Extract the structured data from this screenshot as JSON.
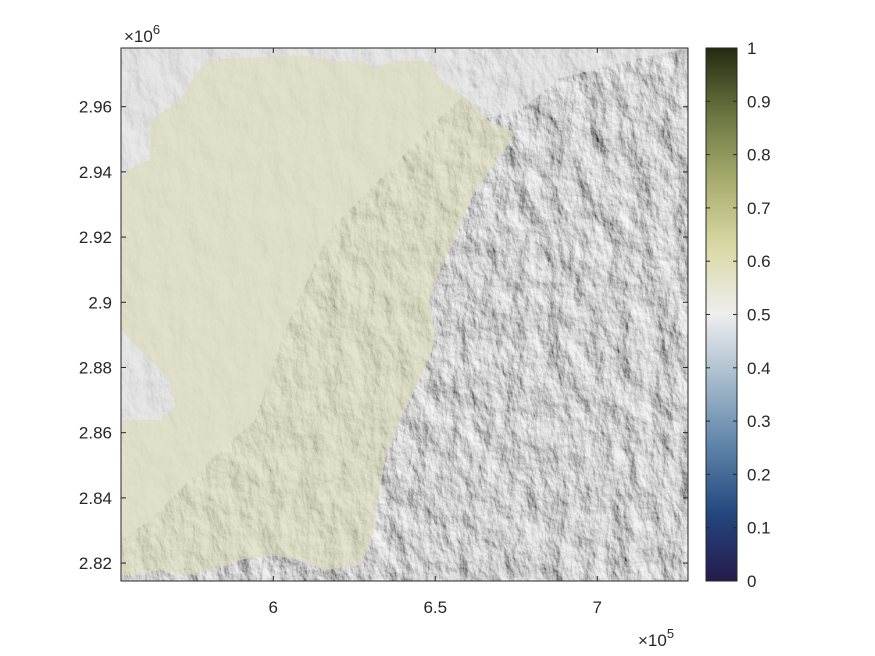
{
  "chart_data": {
    "type": "heatmap",
    "description_kind": "shaded-relief terrain map with translucent overlay",
    "x_axis": {
      "ticks": [
        6,
        6.5,
        7
      ],
      "tick_labels": [
        "6",
        "6.5",
        "7"
      ],
      "multiplier_base": "×10",
      "multiplier_exp": "5",
      "lim": [
        5.53,
        7.28
      ]
    },
    "y_axis": {
      "ticks": [
        2.82,
        2.84,
        2.86,
        2.88,
        2.9,
        2.92,
        2.94,
        2.96
      ],
      "tick_labels": [
        "2.82",
        "2.84",
        "2.86",
        "2.88",
        "2.9",
        "2.92",
        "2.94",
        "2.96"
      ],
      "multiplier_base": "×10",
      "multiplier_exp": "6",
      "lim": [
        2.8145,
        2.978
      ]
    },
    "colorbar": {
      "ticks": [
        0,
        0.1,
        0.2,
        0.3,
        0.4,
        0.5,
        0.6,
        0.7,
        0.8,
        0.9,
        1
      ],
      "tick_labels": [
        "0",
        "0.1",
        "0.2",
        "0.3",
        "0.4",
        "0.5",
        "0.6",
        "0.7",
        "0.8",
        "0.9",
        "1"
      ],
      "lim": [
        0,
        1
      ],
      "colormap_stops": [
        "#261a4c",
        "#23467e",
        "#5c82a8",
        "#a4b9cb",
        "#eeeeee",
        "#dad9a6",
        "#a9ad6e",
        "#6a7640",
        "#252a10"
      ]
    },
    "overlay_color": "#dcdcb9",
    "terrain_base_color": "#d2d2d2",
    "grid": false
  }
}
